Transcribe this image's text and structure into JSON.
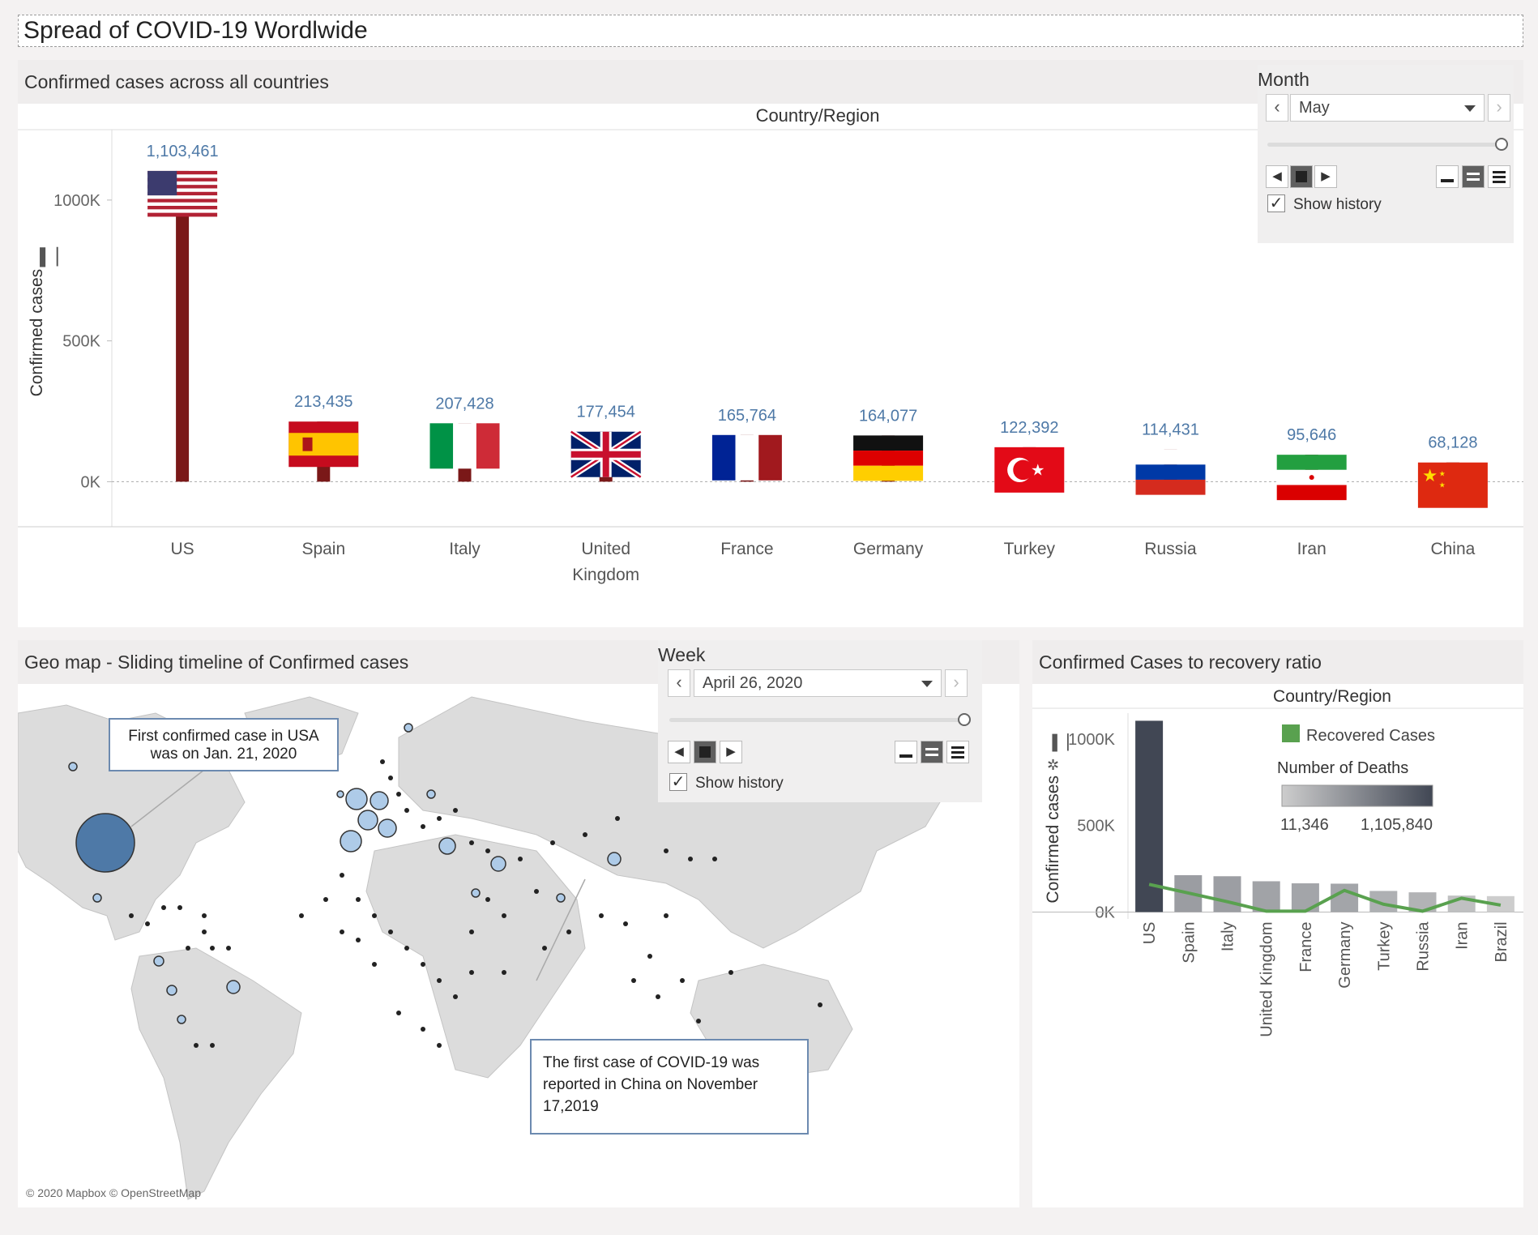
{
  "dashboard_title": "Spread of COVID-19 Wordlwide",
  "top_panel": {
    "title": "Confirmed cases across all countries",
    "x_axis_title": "Country/Region",
    "y_axis_title": "Confirmed cases",
    "y_ticks": [
      "1000K",
      "500K",
      "0K"
    ],
    "month_filter": {
      "label": "Month",
      "value": "May",
      "show_history": "Show history"
    }
  },
  "map_panel": {
    "title": "Geo map - Sliding timeline of Confirmed cases",
    "week_filter": {
      "label": "Week",
      "value": "April 26, 2020",
      "show_history": "Show history"
    },
    "annotation_usa": "First confirmed case in USA was on Jan. 21, 2020",
    "annotation_china": "The first case of COVID-19 was reported in China on November 17,2019",
    "attribution": "© 2020 Mapbox © OpenStreetMap"
  },
  "ratio_panel": {
    "title": "Confirmed Cases to recovery ratio",
    "x_axis_title": "Country/Region",
    "y_axis_title": "Confirmed cases",
    "y_ticks": [
      "1000K",
      "500K",
      "0K"
    ],
    "legend_recovered": "Recovered Cases",
    "legend_deaths_title": "Number of Deaths",
    "legend_min": "11,346",
    "legend_max": "1,105,840"
  },
  "chart_data": [
    {
      "type": "bar",
      "title": "Confirmed cases across all countries",
      "xlabel": "Country/Region",
      "ylabel": "Confirmed cases",
      "ylim": [
        -160000,
        1250000
      ],
      "categories": [
        "US",
        "Spain",
        "Italy",
        "United Kingdom",
        "France",
        "Germany",
        "Turkey",
        "Russia",
        "Iran",
        "China"
      ],
      "values": [
        1103461,
        213435,
        207428,
        177454,
        165764,
        164077,
        122392,
        114431,
        95646,
        68128
      ],
      "value_labels": [
        "1,103,461",
        "213,435",
        "207,428",
        "177,454",
        "165,764",
        "164,077",
        "122,392",
        "114,431",
        "95,646",
        "68,128"
      ],
      "bar_color": "#7a1818"
    },
    {
      "type": "bar",
      "title": "Confirmed Cases to recovery ratio",
      "xlabel": "Country/Region",
      "ylabel": "Confirmed cases",
      "ylim": [
        -40000,
        1150000
      ],
      "categories": [
        "US",
        "Spain",
        "Italy",
        "United Kingdom",
        "France",
        "Germany",
        "Turkey",
        "Russia",
        "Iran",
        "Brazil"
      ],
      "values": [
        1105840,
        213000,
        207000,
        178000,
        166000,
        164000,
        122000,
        114000,
        95000,
        92000
      ],
      "color_scale": [
        "#cdcdcd",
        "#414754"
      ],
      "series": [
        {
          "name": "Recovered Cases",
          "values": [
            160000,
            110000,
            60000,
            5000,
            5000,
            125000,
            45000,
            5000,
            80000,
            40000
          ]
        }
      ]
    }
  ]
}
